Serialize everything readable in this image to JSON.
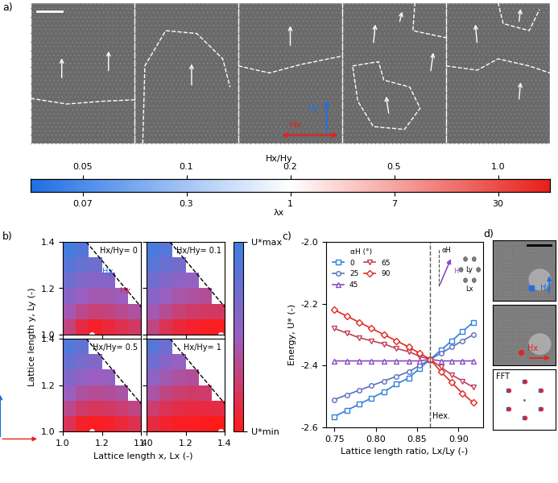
{
  "chart_data": [
    {
      "type": "image_row",
      "panel_label": "a)",
      "field_labels": [
        "Hy",
        "Hx"
      ],
      "colors": [
        "#1f6fe5",
        "#e8201a"
      ]
    },
    {
      "type": "colorbar",
      "top_label": "Hx/Hy",
      "bottom_label": "λx",
      "top_ticks": [
        0.05,
        0.1,
        0.2,
        0.5,
        1.0
      ],
      "bottom_ticks": [
        0.07,
        0.3,
        1,
        7,
        30
      ],
      "colors": [
        "#1f6fe5",
        "#ffffff",
        "#e8201a"
      ]
    },
    {
      "type": "heatmap",
      "panel_label": "b)",
      "xlabel": "Lattice length x, Lx (-)",
      "ylabel": "Lattice length y, Ly (-)",
      "xlim": [
        1.0,
        1.4
      ],
      "ylim": [
        1.0,
        1.4
      ],
      "xticks": [
        1.0,
        1.2,
        1.4
      ],
      "yticks": [
        1.0,
        1.2,
        1.4
      ],
      "inset_labels": [
        "Hy",
        "Hx"
      ],
      "inset_colors": [
        "#1f6fe5",
        "#e8201a"
      ],
      "colors": [
        "#ff1a1a",
        "#9a5fc0",
        "#3d7fe0"
      ],
      "colorbar": {
        "range": [
          0,
          1
        ],
        "ticks": [
          {
            "value": 1,
            "label": "U*max"
          },
          {
            "value": 0,
            "label": "U*min"
          }
        ]
      },
      "panels": [
        {
          "title": "Hx/Hy= 0",
          "minima": [
            [
              1.15,
              1.0
            ]
          ],
          "boundary": [
            [
              1.12,
              1.4
            ],
            [
              1.4,
              1.12
            ]
          ],
          "cells": [
            [
              0.3,
              0.12,
              0.05,
              0.1,
              0.16,
              0.22
            ],
            [
              0.45,
              0.34,
              0.28,
              0.3,
              0.35,
              0.4
            ],
            [
              0.6,
              0.5,
              0.45,
              0.46,
              0.5,
              null
            ],
            [
              0.74,
              0.64,
              0.6,
              0.6,
              null,
              null
            ],
            [
              0.86,
              0.78,
              0.73,
              null,
              null,
              null
            ],
            [
              0.96,
              0.88,
              null,
              null,
              null,
              null
            ]
          ]
        },
        {
          "title": "Hx/Hy= 0.1",
          "minima": [
            [
              1.38,
              1.0
            ]
          ],
          "boundary": [
            [
              1.12,
              1.4
            ],
            [
              1.4,
              1.12
            ]
          ],
          "cells": [
            [
              0.32,
              0.18,
              0.1,
              0.06,
              0.03,
              0.02
            ],
            [
              0.46,
              0.36,
              0.28,
              0.24,
              0.22,
              0.22
            ],
            [
              0.6,
              0.5,
              0.43,
              0.4,
              0.38,
              null
            ],
            [
              0.73,
              0.63,
              0.57,
              0.54,
              null,
              null
            ],
            [
              0.84,
              0.76,
              0.7,
              null,
              null,
              null
            ],
            [
              0.94,
              0.86,
              null,
              null,
              null,
              null
            ]
          ]
        },
        {
          "title": "Hx/Hy= 0.5",
          "minima": [
            [
              1.15,
              1.0
            ]
          ],
          "boundary": [
            [
              1.12,
              1.4
            ],
            [
              1.4,
              1.12
            ]
          ],
          "cells": [
            [
              0.18,
              0.05,
              0.02,
              0.05,
              0.1,
              0.16
            ],
            [
              0.34,
              0.24,
              0.2,
              0.22,
              0.26,
              0.32
            ],
            [
              0.5,
              0.4,
              0.36,
              0.38,
              0.42,
              null
            ],
            [
              0.64,
              0.55,
              0.5,
              0.52,
              null,
              null
            ],
            [
              0.78,
              0.68,
              0.64,
              null,
              null,
              null
            ],
            [
              0.9,
              0.8,
              null,
              null,
              null,
              null
            ]
          ]
        },
        {
          "title": "Hx/Hy= 1",
          "minima": [
            [
              1.38,
              1.0
            ]
          ],
          "boundary": [
            [
              1.12,
              1.4
            ],
            [
              1.4,
              1.12
            ]
          ],
          "cells": [
            [
              0.12,
              0.06,
              0.03,
              0.02,
              0.01,
              0.0
            ],
            [
              0.26,
              0.18,
              0.14,
              0.12,
              0.12,
              0.13
            ],
            [
              0.42,
              0.32,
              0.26,
              0.24,
              0.25,
              null
            ],
            [
              0.58,
              0.46,
              0.4,
              0.38,
              null,
              null
            ],
            [
              0.72,
              0.6,
              0.53,
              null,
              null,
              null
            ],
            [
              0.86,
              0.74,
              null,
              null,
              null,
              null
            ]
          ]
        }
      ]
    },
    {
      "type": "line",
      "panel_label": "c)",
      "xlabel": "Lattice length ratio, Lx/Ly (-)",
      "ylabel": "Energy, U* (-)",
      "xlim": [
        0.74,
        0.93
      ],
      "ylim": [
        -2.6,
        -2.0
      ],
      "xticks": [
        0.75,
        {
          "value": 0.8,
          "label": "0.80"
        },
        0.85,
        {
          "value": 0.9,
          "label": "0.90"
        }
      ],
      "yticks": [
        -2.6,
        -2.4,
        -2.2,
        -2.0
      ],
      "legend": "upper left",
      "legend_title": "αH (°)",
      "hex_line": {
        "x": 0.866,
        "label": "Hex."
      },
      "inset_labels": [
        "αH",
        "H",
        "Lx",
        "Ly"
      ],
      "x": [
        0.75,
        0.765,
        0.78,
        0.795,
        0.81,
        0.825,
        0.84,
        0.853,
        0.866,
        0.879,
        0.892,
        0.905,
        0.918
      ],
      "series": [
        {
          "name": "0",
          "color": "#2f7fe0",
          "marker": "square",
          "values": [
            -2.565,
            -2.545,
            -2.525,
            -2.505,
            -2.485,
            -2.46,
            -2.44,
            -2.41,
            -2.38,
            -2.35,
            -2.32,
            -2.29,
            -2.26
          ]
        },
        {
          "name": "25",
          "color": "#5b70c0",
          "marker": "circle",
          "values": [
            -2.51,
            -2.495,
            -2.48,
            -2.465,
            -2.45,
            -2.435,
            -2.42,
            -2.4,
            -2.38,
            -2.36,
            -2.34,
            -2.32,
            -2.3
          ]
        },
        {
          "name": "45",
          "color": "#8a4cc0",
          "marker": "triangle_up",
          "values": [
            -2.385,
            -2.385,
            -2.385,
            -2.385,
            -2.385,
            -2.385,
            -2.385,
            -2.385,
            -2.38,
            -2.385,
            -2.385,
            -2.385,
            -2.385
          ]
        },
        {
          "name": "65",
          "color": "#c0405a",
          "marker": "triangle_down",
          "values": [
            -2.28,
            -2.295,
            -2.31,
            -2.32,
            -2.33,
            -2.345,
            -2.355,
            -2.37,
            -2.38,
            -2.405,
            -2.43,
            -2.45,
            -2.47
          ]
        },
        {
          "name": "90",
          "color": "#e02a20",
          "marker": "diamond",
          "values": [
            -2.22,
            -2.24,
            -2.26,
            -2.28,
            -2.3,
            -2.32,
            -2.34,
            -2.36,
            -2.38,
            -2.42,
            -2.455,
            -2.49,
            -2.52
          ]
        }
      ]
    },
    {
      "type": "image_column",
      "panel_label": "d)",
      "labels": [
        "Hy",
        "Hx",
        "FFT"
      ],
      "colors": [
        "#1f6fe5",
        "#e8201a"
      ]
    }
  ]
}
